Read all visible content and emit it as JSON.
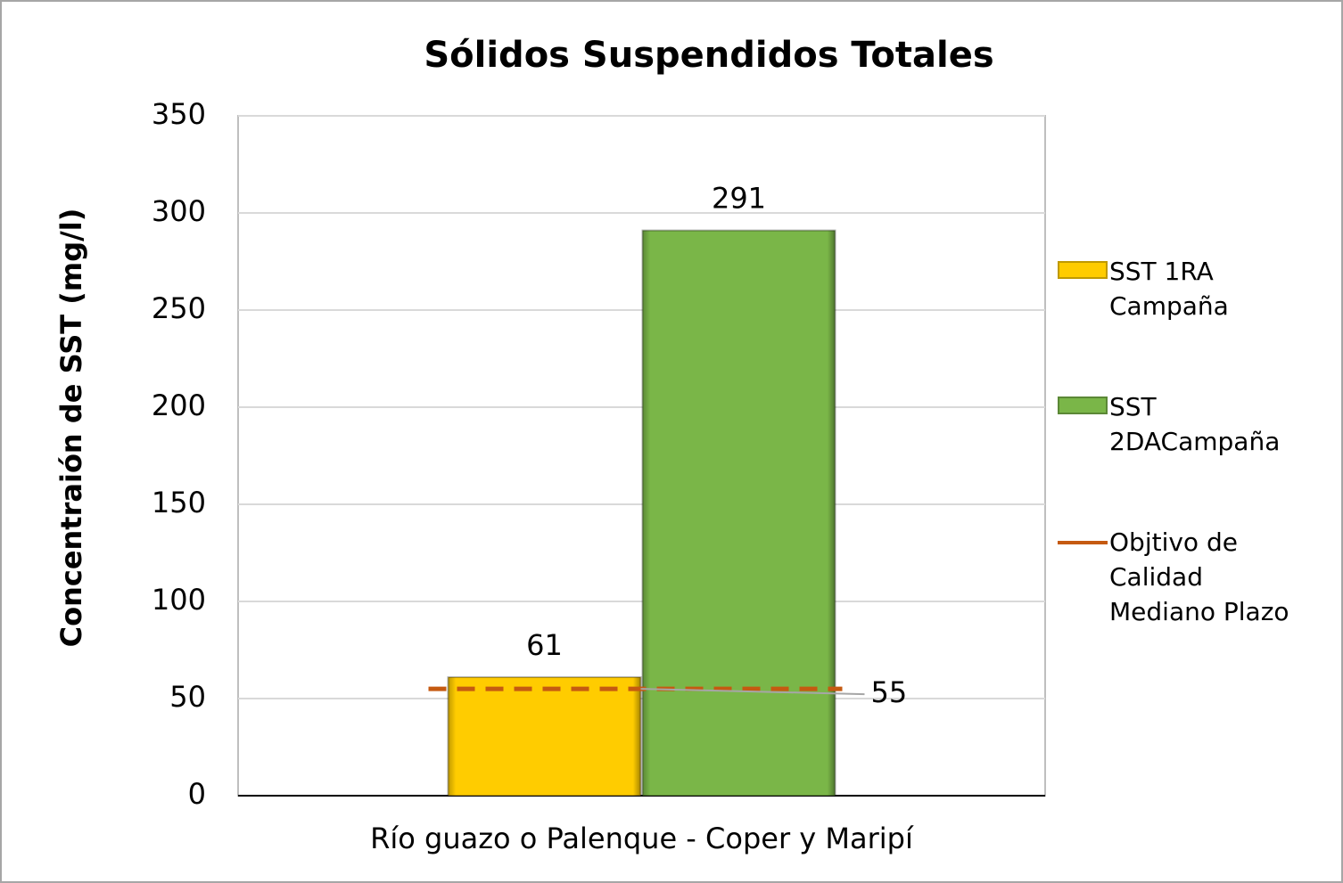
{
  "chart_data": {
    "type": "bar",
    "title": "Sólidos Suspendidos Totales",
    "y_label": "Concentraión de SST (mg/l)",
    "categories": [
      "Río guazo o Palenque - Coper y Maripí"
    ],
    "series": [
      {
        "name": "SST 1RA Campaña",
        "color": "#ffcc00",
        "values": [
          61
        ]
      },
      {
        "name": "SST 2DACampaña",
        "color": "#7ab648",
        "values": [
          291
        ]
      },
      {
        "name": "Objtivo de Calidad Mediano Plazo",
        "color": "#c55a11",
        "type": "line",
        "values": [
          55
        ]
      }
    ],
    "ylim": [
      0,
      350
    ],
    "yticks": [
      0,
      50,
      100,
      150,
      200,
      250,
      300,
      350
    ],
    "grid": true,
    "legend": "right"
  }
}
